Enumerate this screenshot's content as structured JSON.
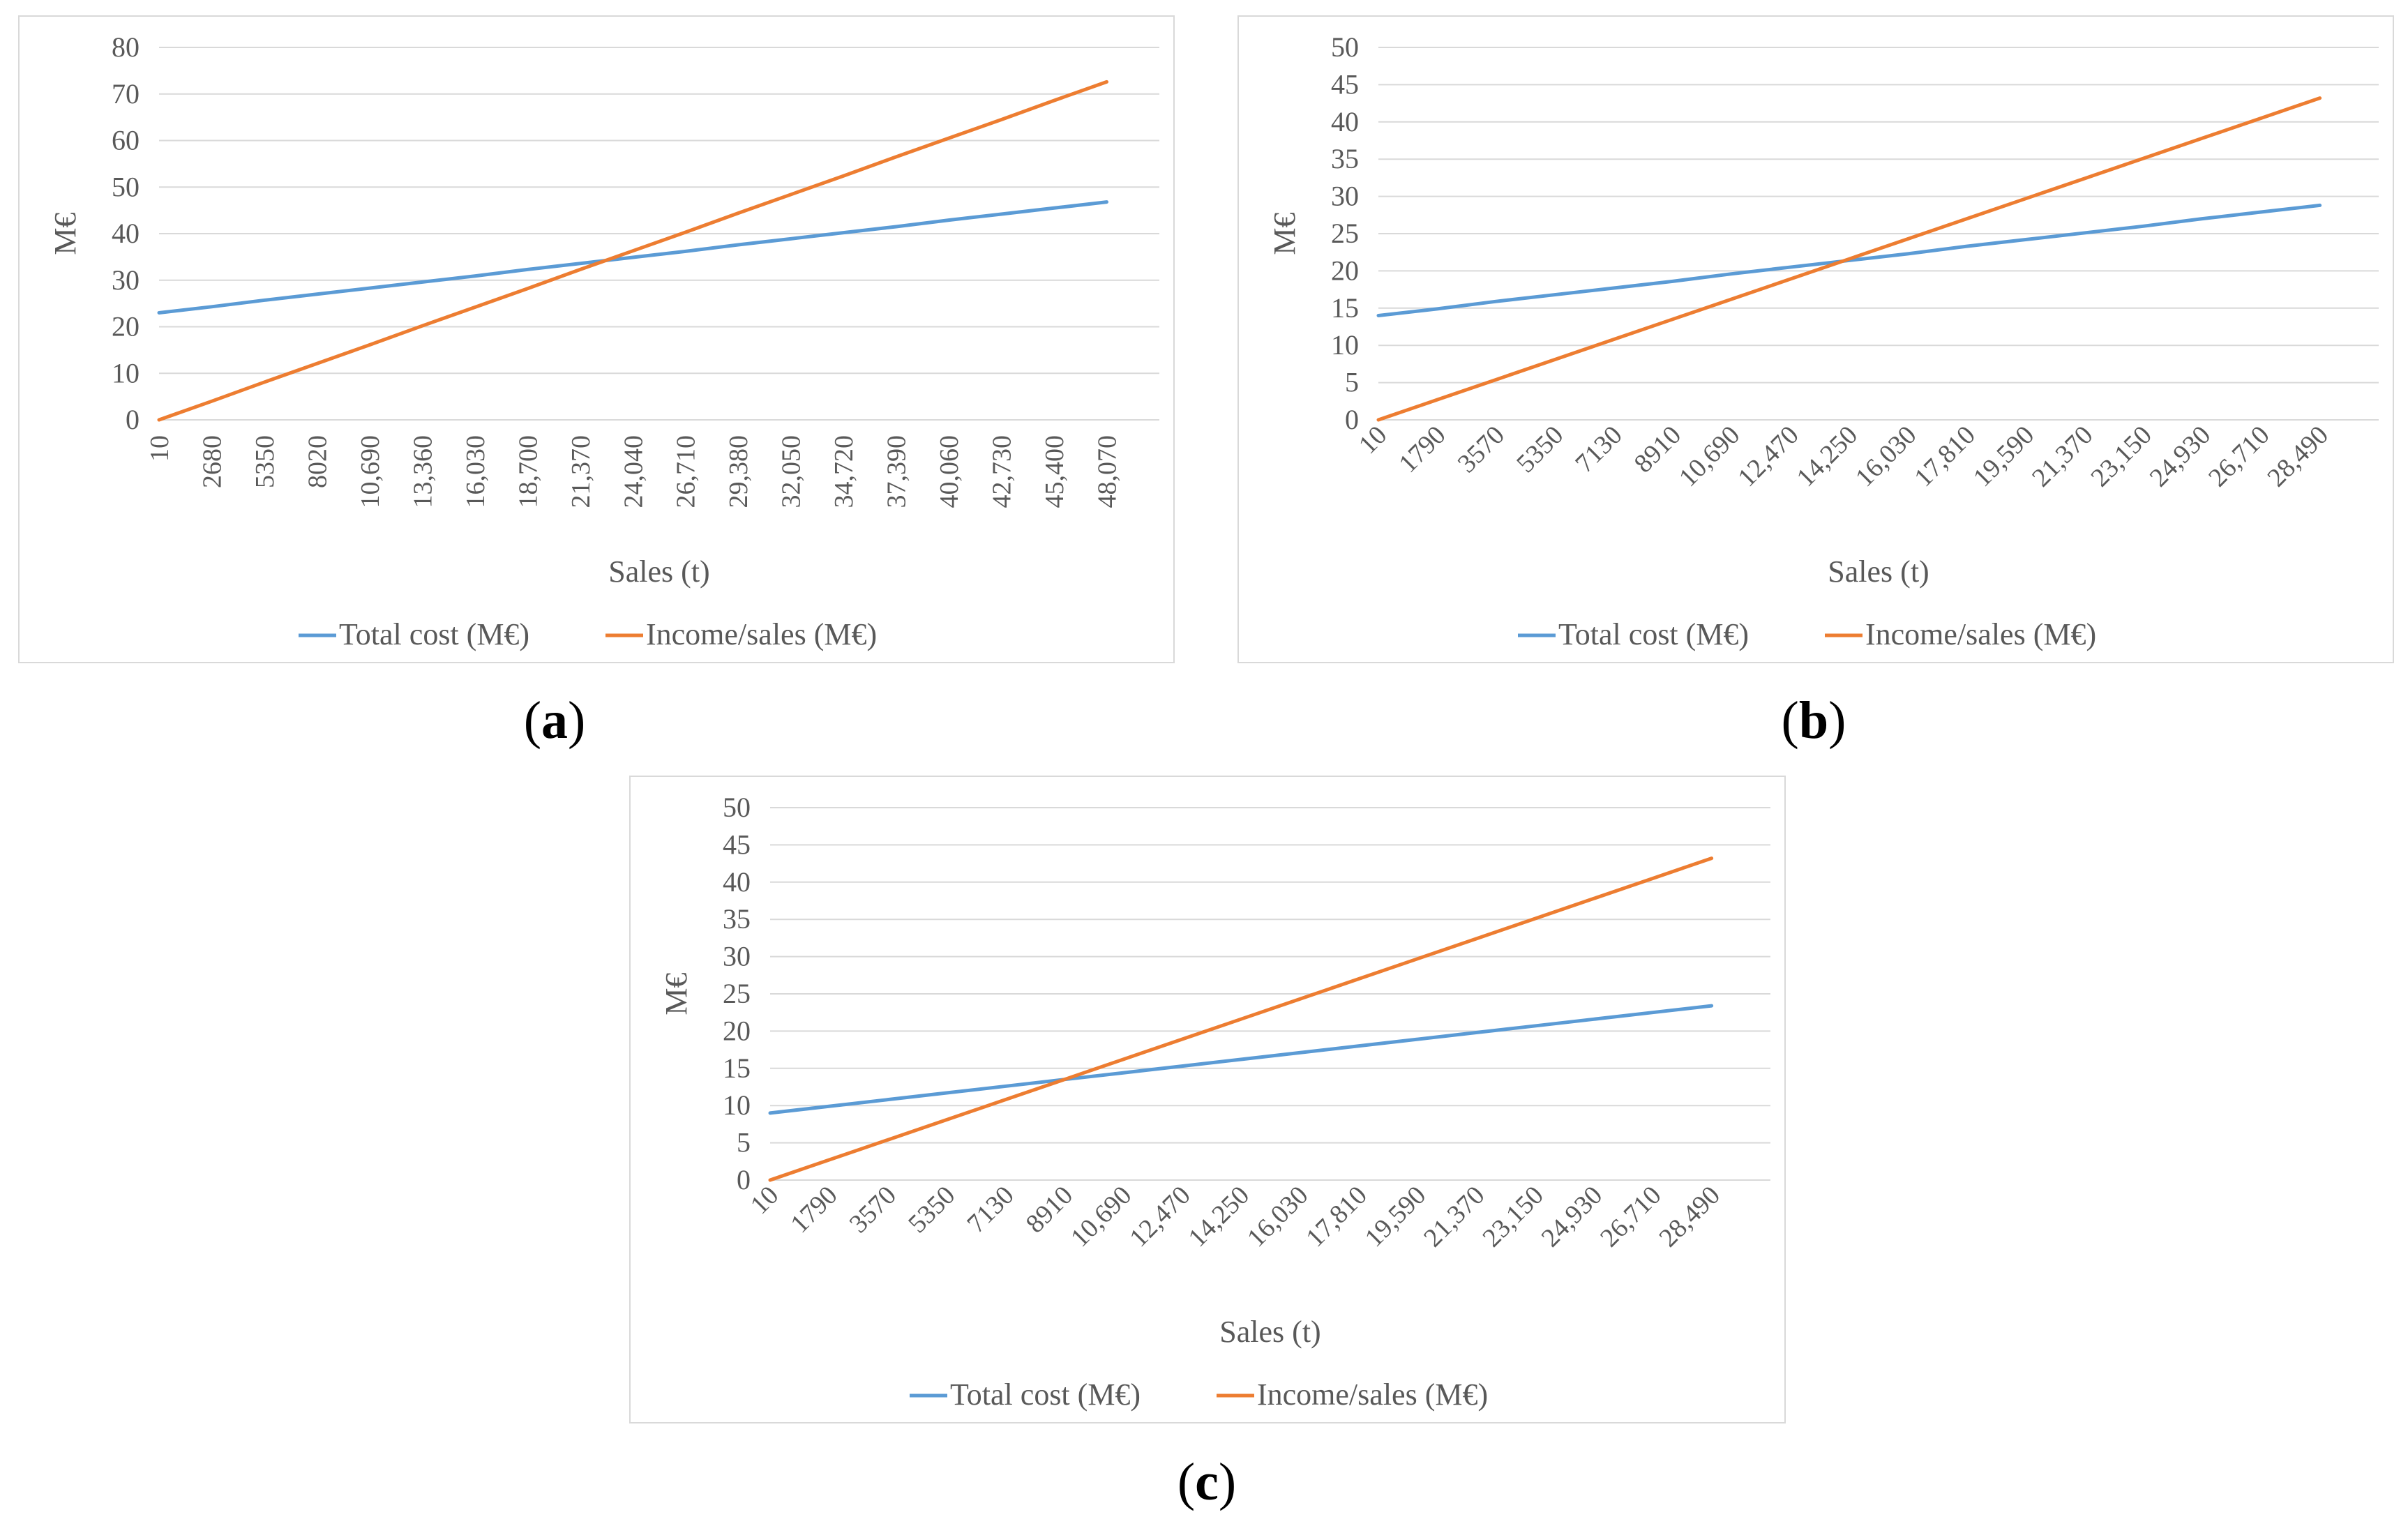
{
  "colors": {
    "total_cost": "#5b9bd5",
    "income": "#ed7d31",
    "grid": "#d9d9d9",
    "text": "#595959"
  },
  "captions": {
    "a": "a",
    "b": "b",
    "c": "c"
  },
  "chart_data": [
    {
      "id": "a",
      "type": "line",
      "title": "",
      "xlabel": "Sales (t)",
      "ylabel": "M€",
      "ylim": [
        0,
        80
      ],
      "yticks": [
        0,
        10,
        20,
        30,
        40,
        50,
        60,
        70,
        80
      ],
      "categories": [
        "10",
        "2680",
        "5350",
        "8020",
        "10,690",
        "13,360",
        "16,030",
        "18,700",
        "21,370",
        "24,040",
        "26,710",
        "29,380",
        "32,050",
        "34,720",
        "37,390",
        "40,060",
        "42,730",
        "45,400",
        "48,070"
      ],
      "series": [
        {
          "name": "Total cost (M€)",
          "color": "#5b9bd5",
          "values": [
            23.0,
            24.3,
            25.7,
            27.0,
            28.3,
            29.6,
            30.9,
            32.3,
            33.6,
            34.9,
            36.2,
            37.6,
            38.9,
            40.2,
            41.5,
            42.9,
            44.2,
            45.5,
            46.8
          ]
        },
        {
          "name": "Income/sales (M€)",
          "color": "#ed7d31",
          "values": [
            0.0,
            4.0,
            8.1,
            12.1,
            16.1,
            20.2,
            24.2,
            28.2,
            32.3,
            36.3,
            40.3,
            44.4,
            48.4,
            52.4,
            56.5,
            60.5,
            64.5,
            68.6,
            72.6
          ]
        }
      ],
      "x_end_fraction_of_last_band": 0.7,
      "legend": "bottom"
    },
    {
      "id": "b",
      "type": "line",
      "title": "",
      "xlabel": "Sales (t)",
      "ylabel": "M€",
      "ylim": [
        0,
        50
      ],
      "yticks": [
        0,
        5,
        10,
        15,
        20,
        25,
        30,
        35,
        40,
        45,
        50
      ],
      "categories": [
        "10",
        "1790",
        "3570",
        "5350",
        "7130",
        "8910",
        "10,690",
        "12,470",
        "14,250",
        "16,030",
        "17,810",
        "19,590",
        "21,370",
        "23,150",
        "24,930",
        "26,710",
        "28,490"
      ],
      "series": [
        {
          "name": "Total cost (M€)",
          "color": "#5b9bd5",
          "values": [
            14.0,
            14.9,
            15.9,
            16.8,
            17.7,
            18.6,
            19.6,
            20.5,
            21.4,
            22.3,
            23.3,
            24.2,
            25.1,
            26.0,
            27.0,
            27.9,
            28.8
          ]
        },
        {
          "name": "Income/sales (M€)",
          "color": "#ed7d31",
          "values": [
            0.0,
            2.7,
            5.4,
            8.1,
            10.8,
            13.5,
            16.2,
            18.9,
            21.6,
            24.3,
            27.0,
            29.7,
            32.4,
            35.1,
            37.8,
            40.5,
            43.2
          ]
        }
      ],
      "x_end_fraction_of_last_band": 0.9,
      "legend": "bottom"
    },
    {
      "id": "c",
      "type": "line",
      "title": "",
      "xlabel": "Sales (t)",
      "ylabel": "M€",
      "ylim": [
        0,
        50
      ],
      "yticks": [
        0,
        5,
        10,
        15,
        20,
        25,
        30,
        35,
        40,
        45,
        50
      ],
      "categories": [
        "10",
        "1790",
        "3570",
        "5350",
        "7130",
        "8910",
        "10,690",
        "12,470",
        "14,250",
        "16,030",
        "17,810",
        "19,590",
        "21,370",
        "23,150",
        "24,930",
        "26,710",
        "28,490"
      ],
      "series": [
        {
          "name": "Total cost (M€)",
          "color": "#5b9bd5",
          "values": [
            9.0,
            9.9,
            10.8,
            11.7,
            12.6,
            13.5,
            14.4,
            15.3,
            16.2,
            17.1,
            18.0,
            18.9,
            19.8,
            20.7,
            21.6,
            22.5,
            23.4
          ]
        },
        {
          "name": "Income/sales (M€)",
          "color": "#ed7d31",
          "values": [
            0.0,
            2.7,
            5.4,
            8.1,
            10.8,
            13.5,
            16.2,
            18.9,
            21.6,
            24.3,
            27.0,
            29.7,
            32.4,
            35.1,
            37.8,
            40.5,
            43.2
          ]
        }
      ],
      "x_end_fraction_of_last_band": 0.9,
      "legend": "bottom"
    }
  ]
}
